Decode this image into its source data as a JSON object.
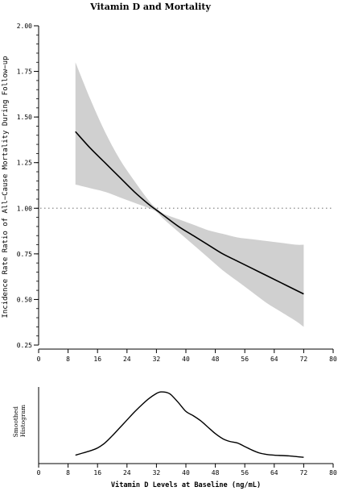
{
  "chart_data": [
    {
      "type": "line",
      "title": "Vitamin D and Mortality",
      "ylabel": "Incidence Rate Ratio of All−Cause Mortality During Follow−up",
      "xlim": [
        0,
        80
      ],
      "ylim": [
        0.25,
        2.0
      ],
      "xticks": [
        "0",
        "8",
        "16",
        "24",
        "32",
        "40",
        "48",
        "56",
        "64",
        "72",
        "80"
      ],
      "yticks": [
        "0.25",
        "0.50",
        "0.75",
        "1.00",
        "1.25",
        "1.50",
        "1.75",
        "2.00"
      ],
      "reference_line": 1.0,
      "series": [
        {
          "x": [
            10,
            14,
            18,
            22,
            26,
            30,
            32,
            34,
            38,
            42,
            46,
            50,
            54,
            58,
            62,
            66,
            70,
            72
          ],
          "y": [
            1.42,
            1.33,
            1.25,
            1.17,
            1.09,
            1.02,
            0.99,
            0.96,
            0.9,
            0.85,
            0.8,
            0.75,
            0.71,
            0.67,
            0.63,
            0.59,
            0.55,
            0.53
          ],
          "lower": [
            1.13,
            1.11,
            1.09,
            1.06,
            1.03,
            1.0,
            0.98,
            0.94,
            0.87,
            0.8,
            0.73,
            0.66,
            0.6,
            0.54,
            0.48,
            0.43,
            0.38,
            0.35
          ],
          "upper": [
            1.8,
            1.6,
            1.42,
            1.27,
            1.15,
            1.04,
            1.0,
            0.97,
            0.94,
            0.91,
            0.88,
            0.86,
            0.84,
            0.83,
            0.82,
            0.81,
            0.8,
            0.8
          ]
        }
      ]
    },
    {
      "type": "line",
      "xlabel": "Vitamin D Levels at Baseline (ng/mL)",
      "ylabel": "Smoothed Histogram",
      "xlim": [
        0,
        80
      ],
      "ylim": [
        0,
        1
      ],
      "xticks": [
        "0",
        "8",
        "16",
        "24",
        "32",
        "40",
        "48",
        "56",
        "64",
        "72",
        "80"
      ],
      "series": [
        {
          "x": [
            10,
            12,
            14,
            16,
            18,
            20,
            22,
            24,
            26,
            28,
            30,
            32,
            33,
            34,
            35,
            36,
            38,
            40,
            42,
            44,
            46,
            48,
            50,
            52,
            54,
            56,
            58,
            60,
            62,
            64,
            66,
            68,
            70,
            72
          ],
          "y": [
            0.05,
            0.08,
            0.11,
            0.15,
            0.22,
            0.32,
            0.43,
            0.54,
            0.65,
            0.75,
            0.84,
            0.91,
            0.93,
            0.93,
            0.92,
            0.89,
            0.78,
            0.66,
            0.6,
            0.53,
            0.44,
            0.35,
            0.28,
            0.24,
            0.22,
            0.17,
            0.12,
            0.08,
            0.06,
            0.05,
            0.045,
            0.04,
            0.03,
            0.02
          ]
        }
      ]
    }
  ]
}
